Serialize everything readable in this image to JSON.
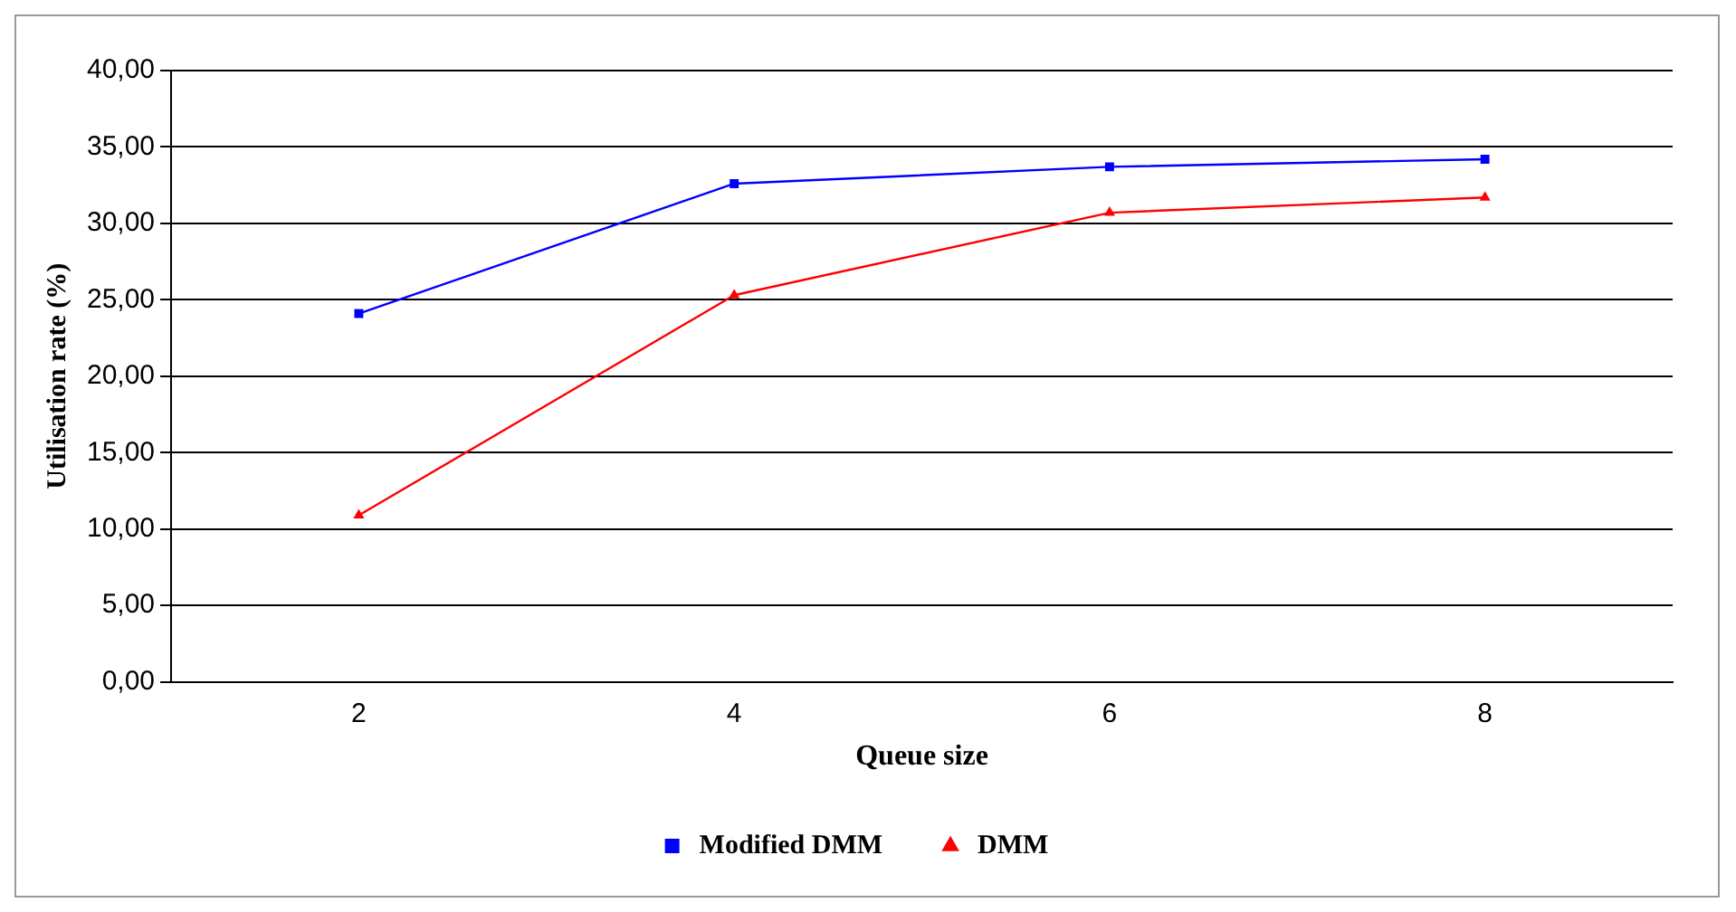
{
  "chart_data": {
    "type": "line",
    "xlabel": "Queue size",
    "ylabel": "Utilisation rate (%)",
    "categories": [
      "2",
      "4",
      "6",
      "8"
    ],
    "series": [
      {
        "name": "Modified DMM",
        "color": "#0000ff",
        "values": [
          24.1,
          32.6,
          33.7,
          34.2
        ],
        "marker": "square"
      },
      {
        "name": "DMM",
        "color": "#ff0000",
        "values": [
          10.9,
          25.3,
          30.7,
          31.7
        ],
        "marker": "triangle"
      }
    ],
    "ylim": [
      0,
      40
    ],
    "yticks": [
      {
        "value": 0,
        "label": "0,00"
      },
      {
        "value": 5,
        "label": "5,00"
      },
      {
        "value": 10,
        "label": "10,00"
      },
      {
        "value": 15,
        "label": "15,00"
      },
      {
        "value": 20,
        "label": "20,00"
      },
      {
        "value": 25,
        "label": "25,00"
      },
      {
        "value": 30,
        "label": "30,00"
      },
      {
        "value": 35,
        "label": "35,00"
      },
      {
        "value": 40,
        "label": "40,00"
      }
    ],
    "grid": "y",
    "legend": "bottom",
    "line_style": "solid"
  }
}
